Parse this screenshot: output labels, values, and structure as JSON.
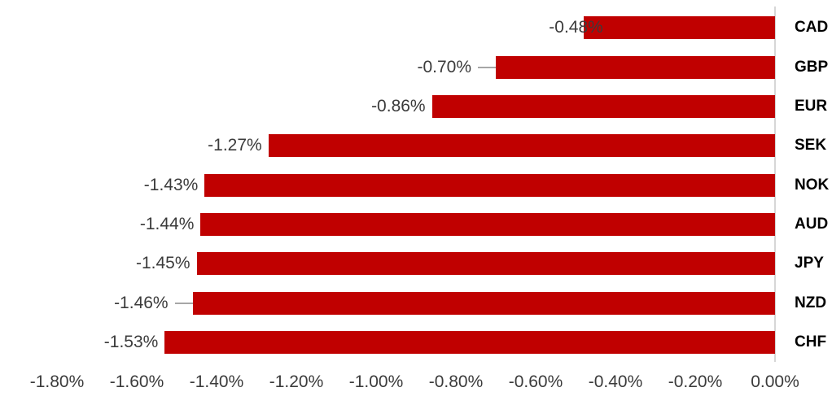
{
  "chart_data": {
    "type": "bar",
    "orientation": "horizontal",
    "title": "",
    "categories": [
      "CAD",
      "GBP",
      "EUR",
      "SEK",
      "NOK",
      "AUD",
      "JPY",
      "NZD",
      "CHF"
    ],
    "values": [
      -0.48,
      -0.7,
      -0.86,
      -1.27,
      -1.43,
      -1.44,
      -1.45,
      -1.46,
      -1.53
    ],
    "data_labels": [
      "-0.48%",
      "-0.70%",
      "-0.86%",
      "-1.27%",
      "-1.43%",
      "-1.44%",
      "-1.45%",
      "-1.46%",
      "-1.53%"
    ],
    "x_ticks": {
      "labels": [
        "-1.80%",
        "-1.60%",
        "-1.40%",
        "-1.20%",
        "-1.00%",
        "-0.80%",
        "-0.60%",
        "-0.40%",
        "-0.20%",
        "0.00%"
      ],
      "values": [
        -1.8,
        -1.6,
        -1.4,
        -1.2,
        -1.0,
        -0.8,
        -0.6,
        -0.4,
        -0.2,
        0.0
      ]
    },
    "xlim": [
      -1.8,
      0.0
    ],
    "grid": false,
    "legend": false,
    "zero_axis_side": "right",
    "rows_with_leader_line": [
      "GBP",
      "NZD"
    ],
    "rows_with_label_overlapping_bar": [
      "CAD"
    ],
    "colors": {
      "bar": "#C00000",
      "data_label": "#3B3B3B",
      "tick_label": "#3B3B3B",
      "category_label": "#000000",
      "axis_line": "#D6D6D6",
      "leader_line": "#A6A6A6",
      "background": "#FFFFFF"
    }
  }
}
